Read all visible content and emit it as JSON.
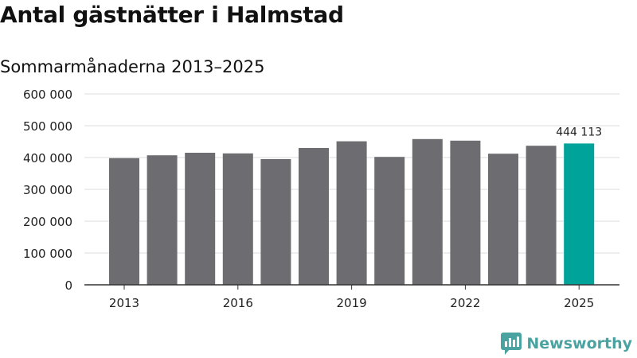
{
  "chart_data": {
    "type": "bar",
    "title": "Antal gästnätter i Halmstad",
    "subtitle": "Sommarmånaderna 2013–2025",
    "categories": [
      "2013",
      "2014",
      "2015",
      "2016",
      "2017",
      "2018",
      "2019",
      "2020",
      "2021",
      "2022",
      "2023",
      "2024",
      "2025"
    ],
    "values": [
      398000,
      407000,
      415000,
      413000,
      395000,
      430000,
      451000,
      402000,
      458000,
      453000,
      412000,
      437000,
      444113
    ],
    "x_tick_labels": [
      "2013",
      "2016",
      "2019",
      "2022",
      "2025"
    ],
    "y_ticks": [
      0,
      100000,
      200000,
      300000,
      400000,
      500000,
      600000
    ],
    "y_tick_labels": [
      "0",
      "100 000",
      "200 000",
      "300 000",
      "400 000",
      "500 000",
      "600 000"
    ],
    "ylim": [
      0,
      600000
    ],
    "grid": true,
    "highlight": {
      "category": "2025",
      "label": "444 113",
      "color": "#00a39a"
    },
    "bar_color": "#6d6c71"
  },
  "brand": {
    "name": "Newsworthy",
    "icon": "newsworthy-logo-icon",
    "color": "#4aa3a0"
  }
}
